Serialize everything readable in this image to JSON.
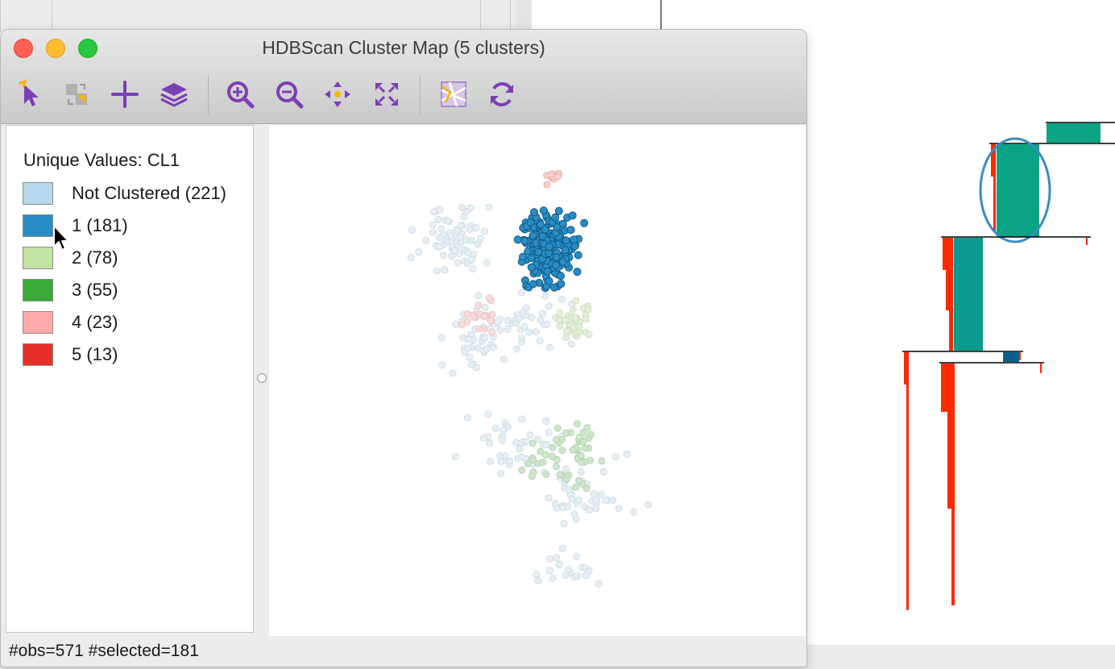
{
  "window": {
    "title": "HDBScan Cluster Map (5 clusters)"
  },
  "toolbar": {
    "tools": [
      {
        "name": "select-tool",
        "icon": "select-arrow-icon"
      },
      {
        "name": "selection-shape-tool",
        "icon": "selection-shape-icon"
      },
      {
        "name": "add-layer-tool",
        "icon": "plus-icon"
      },
      {
        "name": "layers-tool",
        "icon": "layers-icon"
      },
      {
        "name": "zoom-in-tool",
        "icon": "zoom-in-icon"
      },
      {
        "name": "zoom-out-icon-tool",
        "icon": "zoom-out-icon"
      },
      {
        "name": "pan-tool",
        "icon": "pan-arrows-icon"
      },
      {
        "name": "full-extent-tool",
        "icon": "full-extent-icon"
      },
      {
        "name": "basemap-tool",
        "icon": "basemap-icon"
      },
      {
        "name": "refresh-tool",
        "icon": "refresh-icon"
      }
    ],
    "accent_color": "#7b3fb5"
  },
  "legend": {
    "title": "Unique Values: CL1",
    "items": [
      {
        "label": "Not Clustered (221)",
        "color": "#b7d8ec"
      },
      {
        "label": "1 (181)",
        "color": "#2a8cc4"
      },
      {
        "label": "2 (78)",
        "color": "#c4e4a4"
      },
      {
        "label": "3 (55)",
        "color": "#3aaa3a"
      },
      {
        "label": "4 (23)",
        "color": "#fdaaa8"
      },
      {
        "label": "5 (13)",
        "color": "#e8302a"
      }
    ]
  },
  "status": {
    "text": "#obs=571 #selected=181"
  },
  "dendrogram": {
    "cluster_colors": [
      "#0aa384",
      "#ff2a00",
      "#0b5f8a"
    ],
    "highlight_color": "#3a8cc4"
  }
}
